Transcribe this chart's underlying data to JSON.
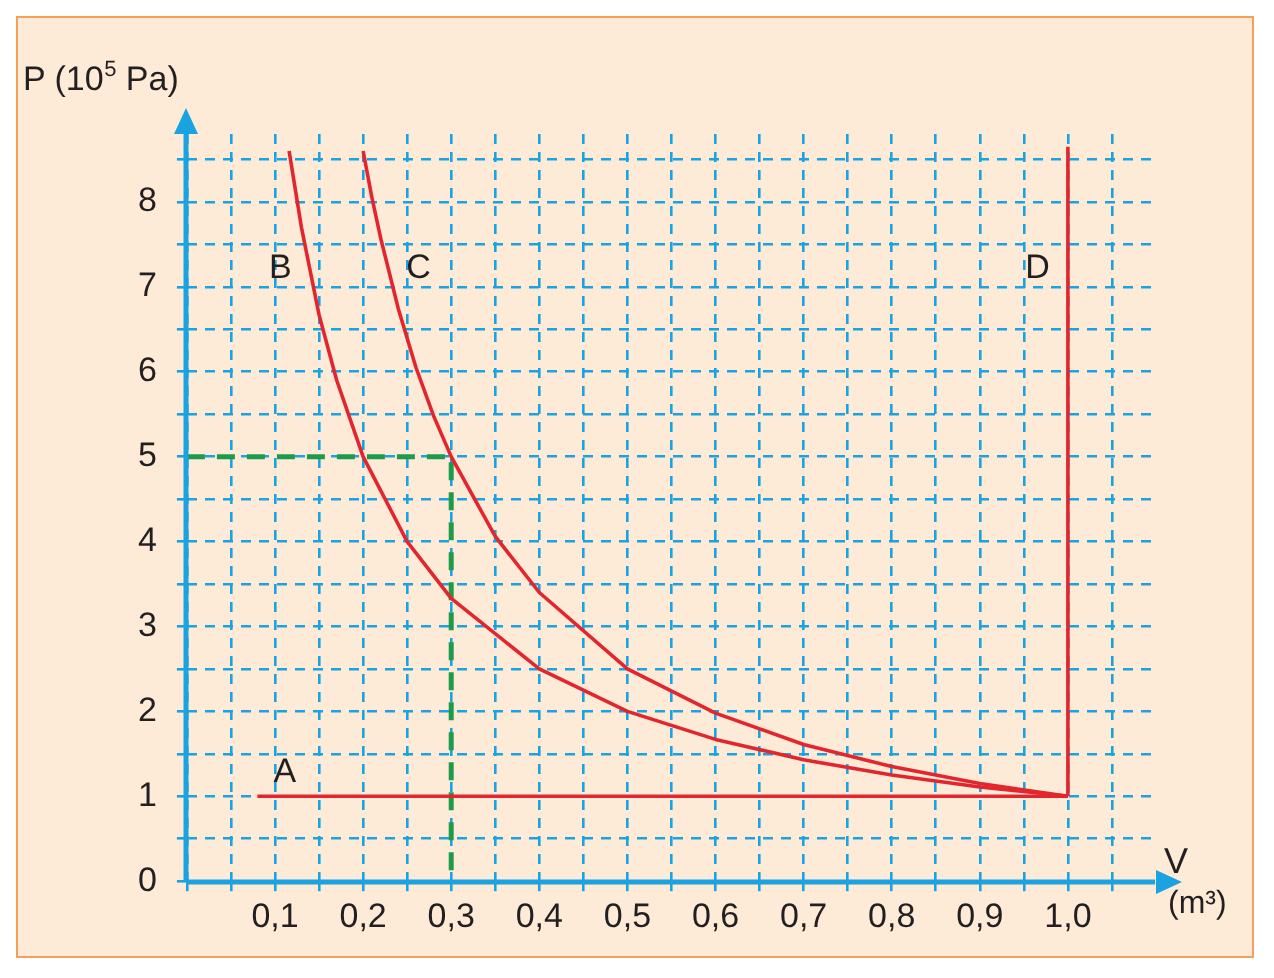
{
  "chart_data": {
    "type": "line",
    "xlabel": "V (m³)",
    "ylabel": "P (10$^{5}$ Pa)",
    "xlim": [
      0,
      1.1
    ],
    "ylim": [
      0,
      8.8
    ],
    "xticks": [
      {
        "value": 0,
        "label": null
      },
      {
        "value": 0.05,
        "label": null
      },
      {
        "value": 0.1,
        "label": "0,1"
      },
      {
        "value": 0.15,
        "label": null
      },
      {
        "value": 0.2,
        "label": "0,2"
      },
      {
        "value": 0.25,
        "label": null
      },
      {
        "value": 0.3,
        "label": "0,3"
      },
      {
        "value": 0.35,
        "label": null
      },
      {
        "value": 0.4,
        "label": "0,4"
      },
      {
        "value": 0.45,
        "label": null
      },
      {
        "value": 0.5,
        "label": "0,5"
      },
      {
        "value": 0.55,
        "label": null
      },
      {
        "value": 0.6,
        "label": "0,6"
      },
      {
        "value": 0.65,
        "label": null
      },
      {
        "value": 0.7,
        "label": "0,7"
      },
      {
        "value": 0.75,
        "label": null
      },
      {
        "value": 0.8,
        "label": "0,8"
      },
      {
        "value": 0.85,
        "label": null
      },
      {
        "value": 0.9,
        "label": "0,9"
      },
      {
        "value": 0.95,
        "label": null
      },
      {
        "value": 1.0,
        "label": "1,0"
      },
      {
        "value": 1.05,
        "label": null
      }
    ],
    "yticks": [
      0,
      {
        "value": 0.5,
        "label": null
      },
      1,
      {
        "value": 1.5,
        "label": null
      },
      2,
      {
        "value": 2.5,
        "label": null
      },
      3,
      {
        "value": 3.5,
        "label": null
      },
      4,
      {
        "value": 4.5,
        "label": null
      },
      5,
      {
        "value": 5.5,
        "label": null
      },
      6,
      {
        "value": 6.5,
        "label": null
      },
      7,
      {
        "value": 7.5,
        "label": null
      },
      8,
      {
        "value": 8.5,
        "label": null
      }
    ],
    "grid": true,
    "marker": "none",
    "series": [
      {
        "name": "A",
        "color": "#e3262e",
        "x": [
          0.08,
          1.0
        ],
        "values": [
          1,
          1
        ]
      },
      {
        "name": "B",
        "color": "#e3262e",
        "x": [
          0.116,
          0.13,
          0.15,
          0.17,
          0.2,
          0.25,
          0.3,
          0.4,
          0.5,
          0.6,
          0.7,
          0.8,
          0.9,
          1.0
        ],
        "values": [
          8.6,
          7.7,
          6.67,
          5.9,
          5,
          4,
          3.33,
          2.5,
          2,
          1.67,
          1.43,
          1.25,
          1.11,
          1
        ]
      },
      {
        "name": "C",
        "color": "#e3262e",
        "x": [
          0.2,
          0.21,
          0.22,
          0.24,
          0.26,
          0.28,
          0.3,
          0.35,
          0.4,
          0.5,
          0.6,
          0.7,
          0.8,
          0.9,
          1.0
        ],
        "values": [
          8.6,
          8.05,
          7.57,
          6.74,
          6.05,
          5.48,
          5,
          4.06,
          3.4,
          2.5,
          1.98,
          1.61,
          1.35,
          1.15,
          1
        ]
      },
      {
        "name": "D",
        "color": "#e3262e",
        "x": [
          1.0,
          1.0
        ],
        "values": [
          1,
          8.65
        ]
      },
      {
        "color": "#1e9b4a",
        "line_style": "dashed",
        "x": [
          0,
          0.3,
          0.3
        ],
        "values": [
          5,
          5,
          0
        ]
      }
    ]
  }
}
